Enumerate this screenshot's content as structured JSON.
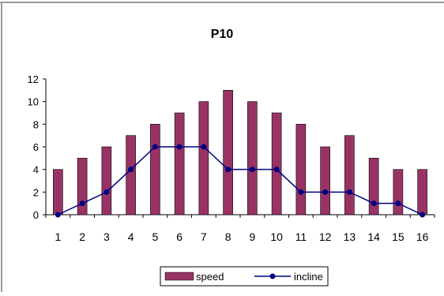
{
  "chart_data": {
    "type": "bar",
    "title": "P10",
    "xlabel": "",
    "ylabel": "",
    "categories": [
      "1",
      "2",
      "3",
      "4",
      "5",
      "6",
      "7",
      "8",
      "9",
      "10",
      "11",
      "12",
      "13",
      "14",
      "15",
      "16"
    ],
    "series": [
      {
        "name": "speed",
        "type": "bar",
        "color": "#993366",
        "values": [
          4,
          5,
          6,
          7,
          8,
          9,
          10,
          11,
          10,
          9,
          8,
          6,
          7,
          5,
          4,
          4
        ]
      },
      {
        "name": "incline",
        "type": "line",
        "color": "#000080",
        "values": [
          0,
          1,
          2,
          4,
          6,
          6,
          6,
          4,
          4,
          4,
          2,
          2,
          2,
          1,
          1,
          0
        ]
      }
    ],
    "ylim": [
      0,
      12
    ],
    "yticks": [
      "0",
      "2",
      "4",
      "6",
      "8",
      "10",
      "12"
    ],
    "grid": false,
    "legend_position": "bottom"
  }
}
